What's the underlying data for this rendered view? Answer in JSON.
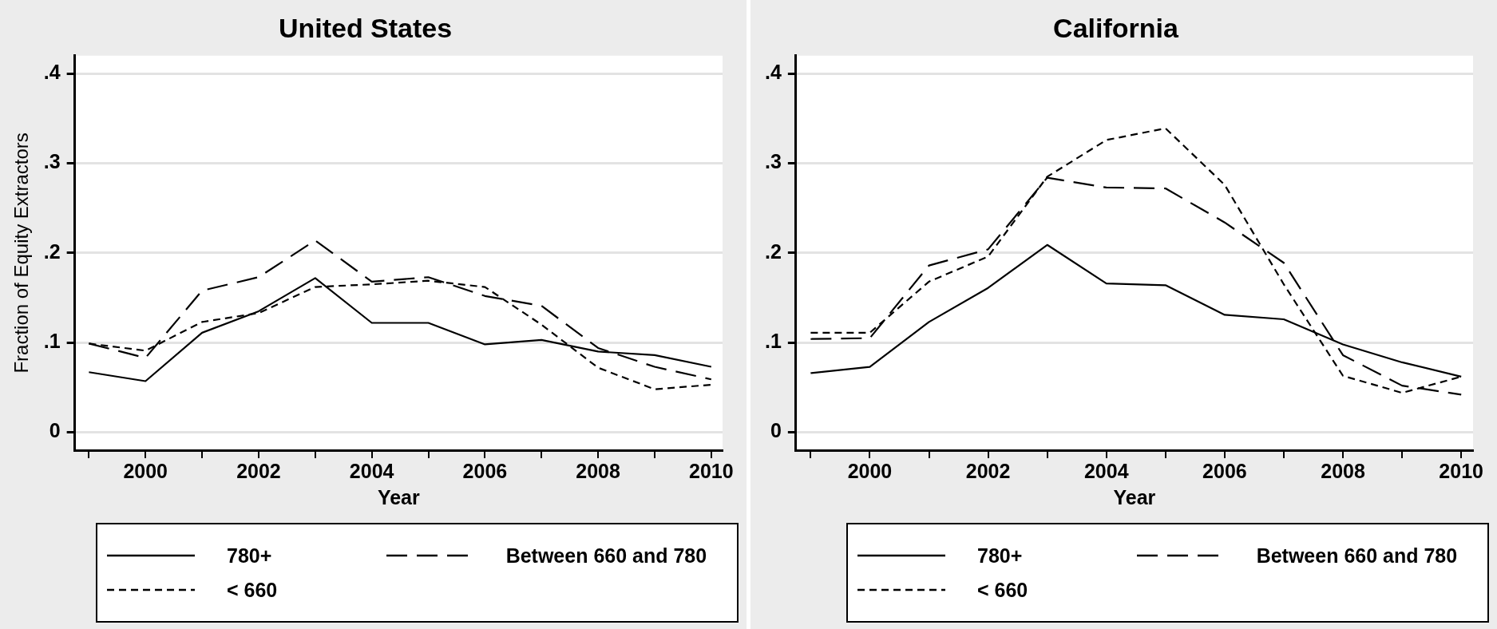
{
  "chart_data": [
    {
      "type": "line",
      "title": "United States",
      "xlabel": "Year",
      "ylabel": "Fraction of Equity Extractors",
      "x": [
        1999,
        2000,
        2001,
        2002,
        2003,
        2004,
        2005,
        2006,
        2007,
        2008,
        2009,
        2010
      ],
      "series": [
        {
          "name": "780+",
          "color": "#000000",
          "line_style": "solid",
          "values": [
            0.067,
            0.057,
            0.111,
            0.135,
            0.172,
            0.122,
            0.122,
            0.098,
            0.103,
            0.09,
            0.086,
            0.073
          ]
        },
        {
          "name": "Between 660 and 780",
          "color": "#000000",
          "line_style": "dashed",
          "values": [
            0.099,
            0.083,
            0.158,
            0.173,
            0.214,
            0.168,
            0.173,
            0.152,
            0.141,
            0.094,
            0.073,
            0.059
          ]
        },
        {
          "name": "< 660",
          "color": "#000000",
          "line_style": "dotted",
          "values": [
            0.099,
            0.091,
            0.123,
            0.133,
            0.162,
            0.165,
            0.169,
            0.162,
            0.12,
            0.072,
            0.048,
            0.053
          ]
        }
      ],
      "xlim": [
        1998.75,
        2010.2
      ],
      "xticks": [
        {
          "value": 1999,
          "label": null
        },
        2000,
        {
          "value": 2001,
          "label": null
        },
        2002,
        {
          "value": 2003,
          "label": null
        },
        2004,
        {
          "value": 2005,
          "label": null
        },
        2006,
        {
          "value": 2007,
          "label": null
        },
        2008,
        {
          "value": 2009,
          "label": null
        },
        2010
      ],
      "ylim": [
        -0.02,
        0.42
      ],
      "yticks": [
        0,
        {
          "value": 0.1,
          "label": ".1"
        },
        {
          "value": 0.2,
          "label": ".2"
        },
        {
          "value": 0.3,
          "label": ".3"
        },
        {
          "value": 0.4,
          "label": ".4"
        }
      ],
      "grid": "y",
      "legend": "bottom",
      "marker": "none"
    },
    {
      "type": "line",
      "title": "California",
      "xlabel": "Year",
      "x": [
        1999,
        2000,
        2001,
        2002,
        2003,
        2004,
        2005,
        2006,
        2007,
        2008,
        2009,
        2010
      ],
      "series": [
        {
          "name": "780+",
          "color": "#000000",
          "line_style": "solid",
          "values": [
            0.066,
            0.073,
            0.123,
            0.161,
            0.209,
            0.166,
            0.164,
            0.131,
            0.126,
            0.098,
            0.078,
            0.062
          ]
        },
        {
          "name": "Between 660 and 780",
          "color": "#000000",
          "line_style": "dashed",
          "values": [
            0.104,
            0.105,
            0.186,
            0.204,
            0.284,
            0.273,
            0.272,
            0.234,
            0.189,
            0.086,
            0.052,
            0.042
          ]
        },
        {
          "name": "< 660",
          "color": "#000000",
          "line_style": "dotted",
          "values": [
            0.111,
            0.111,
            0.168,
            0.196,
            0.285,
            0.326,
            0.339,
            0.276,
            0.165,
            0.063,
            0.044,
            0.062
          ]
        }
      ],
      "xlim": [
        1998.75,
        2010.2
      ],
      "xticks": [
        {
          "value": 1999,
          "label": null
        },
        2000,
        {
          "value": 2001,
          "label": null
        },
        2002,
        {
          "value": 2003,
          "label": null
        },
        2004,
        {
          "value": 2005,
          "label": null
        },
        2006,
        {
          "value": 2007,
          "label": null
        },
        2008,
        {
          "value": 2009,
          "label": null
        },
        2010
      ],
      "ylim": [
        -0.02,
        0.42
      ],
      "yticks": [
        0,
        {
          "value": 0.1,
          "label": ".1"
        },
        {
          "value": 0.2,
          "label": ".2"
        },
        {
          "value": 0.3,
          "label": ".3"
        },
        {
          "value": 0.4,
          "label": ".4"
        }
      ],
      "grid": "y",
      "legend": "bottom",
      "marker": "none"
    }
  ]
}
